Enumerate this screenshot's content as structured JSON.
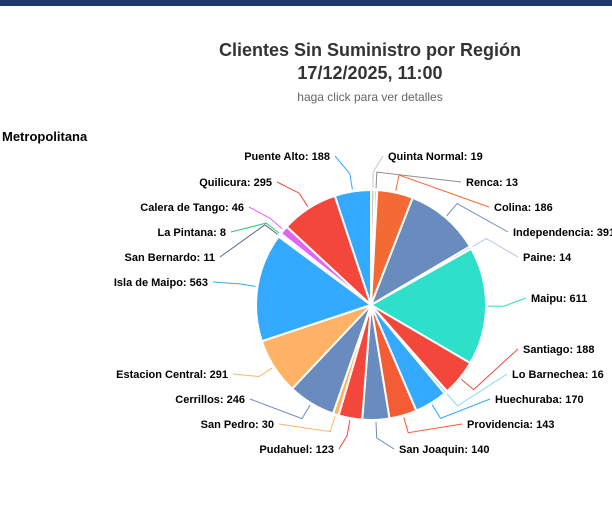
{
  "header": {
    "title_line1": "Clientes Sin Suministro por Región",
    "title_line2": "17/12/2025, 11:00",
    "subtitle": "haga click para ver detalles"
  },
  "region": {
    "name": "Metropolitana"
  },
  "chart_data": {
    "type": "pie",
    "title": "Clientes Sin Suministro por Región 17/12/2025, 11:00",
    "subtitle": "haga click para ver detalles",
    "series_name": "Metropolitana",
    "slices": [
      {
        "name": "Quinta Normal",
        "value": 19,
        "color": "#c9c9c9"
      },
      {
        "name": "Renca",
        "value": 13,
        "color": "#8e8e8e"
      },
      {
        "name": "Colina",
        "value": 186,
        "color": "#f46a35"
      },
      {
        "name": "Independencia",
        "value": 391,
        "color": "#6a8bbd"
      },
      {
        "name": "Paine",
        "value": 14,
        "color": "#b6c8e6"
      },
      {
        "name": "Maipu",
        "value": 611,
        "color": "#2ee0c9"
      },
      {
        "name": "Santiago",
        "value": 188,
        "color": "#f3473c"
      },
      {
        "name": "Lo Barnechea",
        "value": 16,
        "color": "#8fd6f5"
      },
      {
        "name": "Huechuraba",
        "value": 170,
        "color": "#33a9ff"
      },
      {
        "name": "Providencia",
        "value": 143,
        "color": "#f45c35"
      },
      {
        "name": "San Joaquin",
        "value": 140,
        "color": "#6a8bbd"
      },
      {
        "name": "Pudahuel",
        "value": 123,
        "color": "#f3473c"
      },
      {
        "name": "San Pedro",
        "value": 30,
        "color": "#ffb266"
      },
      {
        "name": "Cerrillos",
        "value": 246,
        "color": "#6a8bbd"
      },
      {
        "name": "Estacion Central",
        "value": 291,
        "color": "#ffb266"
      },
      {
        "name": "Isla de Maipo",
        "value": 563,
        "color": "#33aaff"
      },
      {
        "name": "San Bernardo",
        "value": 11,
        "color": "#5a6d8a"
      },
      {
        "name": "La Pintana",
        "value": 8,
        "color": "#2ecc71"
      },
      {
        "name": "Calera de Tango",
        "value": 46,
        "color": "#e066f2"
      },
      {
        "name": "Quilicura",
        "value": 295,
        "color": "#f3473c"
      },
      {
        "name": "Puente Alto",
        "value": 188,
        "color": "#33aaff"
      }
    ]
  }
}
